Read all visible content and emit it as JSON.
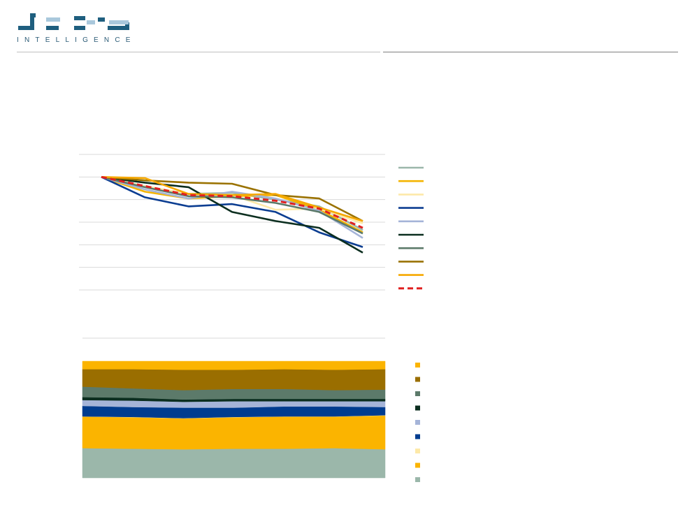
{
  "brand": {
    "logo_word": "data",
    "tagline": "INTELLIGENCE",
    "colors": {
      "mark": "#1f5f7f",
      "accent": "#a9c8dc",
      "tagline": "#2d5d78"
    }
  },
  "chart_data": [
    {
      "type": "line",
      "title": "",
      "xlabel": "",
      "ylabel": "",
      "ylim": [
        0,
        6
      ],
      "grid": true,
      "legend_position": "right",
      "x": [
        0,
        1,
        2,
        3,
        4,
        5,
        6
      ],
      "series": [
        {
          "color": "#9bb7aa",
          "dashed": false,
          "values": [
            5,
            4.55,
            4.25,
            4.3,
            4.0,
            3.7,
            2.65
          ]
        },
        {
          "color": "#f4b400",
          "dashed": false,
          "values": [
            5,
            4.35,
            4.05,
            4.15,
            4.2,
            3.55,
            2.55
          ]
        },
        {
          "color": "#fde9a8",
          "dashed": false,
          "values": [
            5,
            4.6,
            4.25,
            4.2,
            3.55,
            3.6,
            2.95
          ]
        },
        {
          "color": "#0b3d91",
          "dashed": false,
          "values": [
            5,
            4.1,
            3.7,
            3.8,
            3.45,
            2.55,
            1.9
          ]
        },
        {
          "color": "#a5b4d8",
          "dashed": false,
          "values": [
            5,
            4.45,
            4.05,
            4.35,
            4.05,
            3.5,
            2.3
          ]
        },
        {
          "color": "#0b2e1f",
          "dashed": false,
          "values": [
            5,
            4.75,
            4.55,
            3.45,
            3.05,
            2.75,
            1.65
          ]
        },
        {
          "color": "#5c7a6a",
          "dashed": false,
          "values": [
            5,
            4.55,
            4.15,
            4.1,
            3.85,
            3.45,
            2.5
          ]
        },
        {
          "color": "#9a7200",
          "dashed": false,
          "values": [
            5,
            4.85,
            4.75,
            4.7,
            4.2,
            4.05,
            3.05
          ]
        },
        {
          "color": "#f6a800",
          "dashed": false,
          "values": [
            5,
            4.95,
            4.25,
            4.2,
            4.25,
            3.65,
            3.05
          ]
        },
        {
          "color": "#e02020",
          "dashed": true,
          "values": [
            5,
            4.6,
            4.2,
            4.15,
            3.95,
            3.6,
            2.75
          ]
        }
      ]
    },
    {
      "type": "area",
      "title": "",
      "stacked": "percent",
      "ylim": [
        0,
        1
      ],
      "legend_position": "right",
      "x": [
        0,
        1,
        2,
        3,
        4,
        5,
        6
      ],
      "series": [
        {
          "color": "#9bb7aa",
          "values": [
            0.255,
            0.25,
            0.245,
            0.25,
            0.25,
            0.255,
            0.245
          ]
        },
        {
          "color": "#fbb400",
          "values": [
            0.27,
            0.27,
            0.265,
            0.27,
            0.275,
            0.27,
            0.29
          ]
        },
        {
          "color": "#fde9a8",
          "values": [
            0.002,
            0.002,
            0.002,
            0.002,
            0.002,
            0.002,
            0.002
          ]
        },
        {
          "color": "#003c8f",
          "values": [
            0.09,
            0.085,
            0.09,
            0.08,
            0.085,
            0.085,
            0.07
          ]
        },
        {
          "color": "#a5b4d8",
          "values": [
            0.05,
            0.055,
            0.05,
            0.055,
            0.045,
            0.045,
            0.05
          ]
        },
        {
          "color": "#0b2e1f",
          "values": [
            0.025,
            0.025,
            0.02,
            0.02,
            0.02,
            0.02,
            0.02
          ]
        },
        {
          "color": "#5c7a6a",
          "values": [
            0.09,
            0.08,
            0.08,
            0.085,
            0.085,
            0.075,
            0.08
          ]
        },
        {
          "color": "#9a6e00",
          "values": [
            0.15,
            0.165,
            0.175,
            0.165,
            0.17,
            0.175,
            0.175
          ]
        },
        {
          "color": "#fbb400",
          "values": [
            0.068,
            0.068,
            0.073,
            0.073,
            0.068,
            0.073,
            0.068
          ]
        }
      ],
      "legend_order_top_to_bottom": [
        8,
        7,
        6,
        5,
        4,
        3,
        2,
        1,
        0
      ]
    }
  ]
}
